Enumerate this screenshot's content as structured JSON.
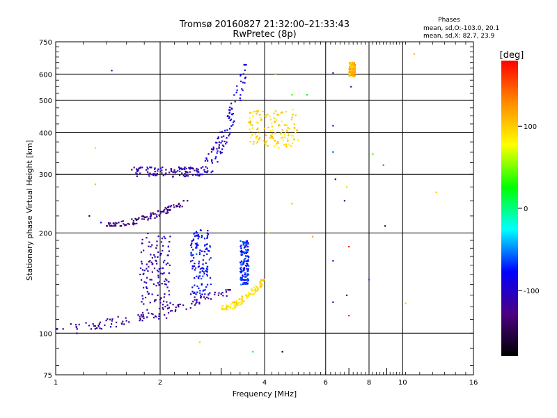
{
  "header": {
    "title_line1": "Tromsø 20160827 21:32:00–21:33:43",
    "title_line2": "RwPretec (8p)",
    "stats_title": "Phases",
    "stats_line1": "mean, sd,O:-103.0, 20.1",
    "stats_line2": "mean, sd,X:  82.7, 23.9"
  },
  "colorbar": {
    "label": "[deg]",
    "ticks": [
      "100",
      "0",
      "-100"
    ],
    "tick_values": [
      100,
      0,
      -100
    ],
    "range": [
      -180,
      180
    ],
    "colormap": [
      "#000000",
      "#4b0082",
      "#0000ff",
      "#00ffff",
      "#00ff00",
      "#ffff00",
      "#ff8c00",
      "#ff0000"
    ]
  },
  "chart_data": {
    "type": "scatter",
    "title": "Tromsø 20160827 21:32:00–21:33:43",
    "subtitle": "RwPretec (8p)",
    "xlabel": "Frequency [MHz]",
    "ylabel": "Stationary phase Virtual Height [km]",
    "xscale": "log",
    "yscale": "log",
    "xlim": [
      1,
      16
    ],
    "ylim": [
      75,
      750
    ],
    "xticks": [
      1,
      2,
      4,
      6,
      8,
      10,
      16
    ],
    "yticks": [
      75,
      100,
      200,
      300,
      400,
      500,
      600,
      750
    ],
    "grid": true,
    "point_groups": [
      {
        "desc": "lower F1 trace",
        "x_range": [
          1.0,
          3.2
        ],
        "y_range": [
          103,
          135
        ],
        "phase": -120,
        "shape": "rising"
      },
      {
        "desc": "lower trace end",
        "x_range": [
          3.0,
          4.0
        ],
        "y_range": [
          118,
          145
        ],
        "phase": 90,
        "shape": "rising"
      },
      {
        "desc": "cluster near 1.9 MHz",
        "x_range": [
          1.75,
          2.15
        ],
        "y_range": [
          110,
          200
        ],
        "phase": -110,
        "shape": "cloud"
      },
      {
        "desc": "cluster near 2.6 MHz",
        "x_range": [
          2.45,
          2.8
        ],
        "y_range": [
          130,
          205
        ],
        "phase": -80,
        "shape": "cloud"
      },
      {
        "desc": "column near 3.5 MHz",
        "x_range": [
          3.4,
          3.6
        ],
        "y_range": [
          140,
          190
        ],
        "phase": -70,
        "shape": "cloud"
      },
      {
        "desc": "mid trace",
        "x_range": [
          1.4,
          2.4
        ],
        "y_range": [
          210,
          250
        ],
        "phase": -130,
        "shape": "rising"
      },
      {
        "desc": "F2 base",
        "x_range": [
          1.65,
          2.6
        ],
        "y_range": [
          295,
          330
        ],
        "phase": -110,
        "shape": "flat"
      },
      {
        "desc": "F2 rise",
        "x_range": [
          2.6,
          3.55
        ],
        "y_range": [
          300,
          640
        ],
        "phase": -95,
        "shape": "rising"
      },
      {
        "desc": "F2 X-mode",
        "x_range": [
          3.6,
          5.0
        ],
        "y_range": [
          360,
          470
        ],
        "phase": 95,
        "shape": "cloud"
      },
      {
        "desc": "high echoes near 7 MHz",
        "x_range": [
          7.0,
          7.3
        ],
        "y_range": [
          590,
          650
        ],
        "phase": 110,
        "shape": "cloud"
      }
    ],
    "scattered_points": [
      {
        "x": 1.45,
        "y": 615,
        "phase": -110
      },
      {
        "x": 1.3,
        "y": 360,
        "phase": 60
      },
      {
        "x": 1.3,
        "y": 280,
        "phase": 110
      },
      {
        "x": 4.3,
        "y": 600,
        "phase": 110
      },
      {
        "x": 6.3,
        "y": 605,
        "phase": -110
      },
      {
        "x": 6.3,
        "y": 420,
        "phase": -110
      },
      {
        "x": 6.3,
        "y": 350,
        "phase": -60
      },
      {
        "x": 6.4,
        "y": 290,
        "phase": -150
      },
      {
        "x": 6.8,
        "y": 250,
        "phase": -140
      },
      {
        "x": 6.9,
        "y": 275,
        "phase": 60
      },
      {
        "x": 7.1,
        "y": 550,
        "phase": -110
      },
      {
        "x": 8.2,
        "y": 345,
        "phase": 40
      },
      {
        "x": 8.8,
        "y": 320,
        "phase": 150
      },
      {
        "x": 8.9,
        "y": 210,
        "phase": -160
      },
      {
        "x": 10.8,
        "y": 690,
        "phase": 110
      },
      {
        "x": 12.5,
        "y": 265,
        "phase": 100
      },
      {
        "x": 10.2,
        "y": 123,
        "phase": 100
      },
      {
        "x": 7.0,
        "y": 182,
        "phase": 170
      },
      {
        "x": 7.0,
        "y": 113,
        "phase": 170
      },
      {
        "x": 6.3,
        "y": 124,
        "phase": -110
      },
      {
        "x": 6.9,
        "y": 130,
        "phase": -110
      },
      {
        "x": 8.0,
        "y": 145,
        "phase": -60
      },
      {
        "x": 6.3,
        "y": 165,
        "phase": -90
      },
      {
        "x": 4.5,
        "y": 88,
        "phase": -160
      },
      {
        "x": 3.7,
        "y": 88,
        "phase": 10
      },
      {
        "x": 2.6,
        "y": 94,
        "phase": 100
      },
      {
        "x": 1.15,
        "y": 100,
        "phase": -110
      },
      {
        "x": 4.8,
        "y": 245,
        "phase": 110
      },
      {
        "x": 5.5,
        "y": 195,
        "phase": 120
      },
      {
        "x": 4.1,
        "y": 200,
        "phase": 100
      },
      {
        "x": 4.8,
        "y": 520,
        "phase": 40
      },
      {
        "x": 5.3,
        "y": 520,
        "phase": 30
      },
      {
        "x": 1.25,
        "y": 225,
        "phase": -160
      },
      {
        "x": 1.35,
        "y": 215,
        "phase": -100
      }
    ]
  }
}
